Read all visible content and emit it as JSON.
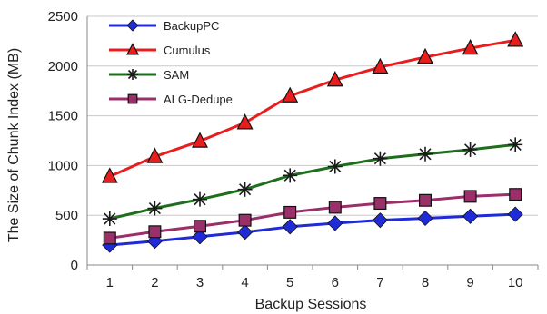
{
  "chart_data": {
    "type": "line",
    "title": "",
    "xlabel": "Backup Sessions",
    "ylabel": "The Size of Chunk Index (MB)",
    "categories": [
      "1",
      "2",
      "3",
      "4",
      "5",
      "6",
      "7",
      "8",
      "9",
      "10"
    ],
    "ylim": [
      0,
      2500
    ],
    "yticks": [
      "0",
      "500",
      "1000",
      "1500",
      "2000",
      "2500"
    ],
    "grid": "horizontal",
    "legend_position": "top-left",
    "series": [
      {
        "name": "BackupPC",
        "color": "#1f2bd6",
        "marker": "diamond",
        "values": [
          200,
          240,
          285,
          330,
          385,
          420,
          450,
          470,
          490,
          510
        ]
      },
      {
        "name": "Cumulus",
        "color": "#e81e1e",
        "marker": "triangle",
        "values": [
          890,
          1090,
          1245,
          1430,
          1700,
          1860,
          1990,
          2090,
          2180,
          2260
        ]
      },
      {
        "name": "SAM",
        "color": "#1e6e1e",
        "marker": "asterisk",
        "values": [
          465,
          570,
          660,
          760,
          900,
          990,
          1070,
          1115,
          1160,
          1210
        ]
      },
      {
        "name": "ALG-Dedupe",
        "color": "#9a2f6a",
        "marker": "square",
        "values": [
          270,
          335,
          390,
          450,
          530,
          580,
          620,
          650,
          690,
          710
        ]
      }
    ]
  }
}
